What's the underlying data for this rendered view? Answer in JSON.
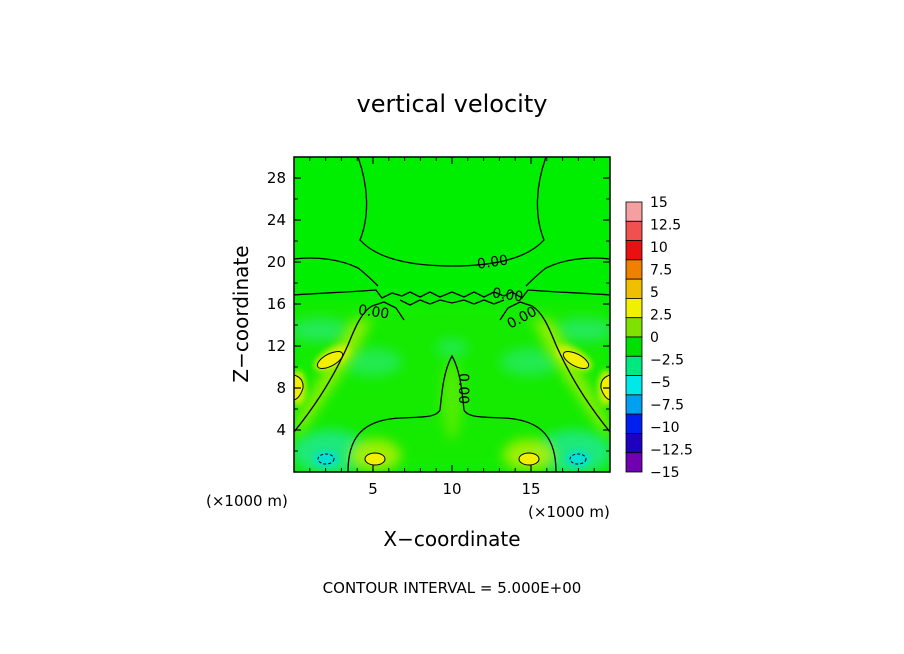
{
  "chart_data": {
    "type": "heatmap",
    "title": "vertical velocity",
    "xlabel": "X−coordinate",
    "ylabel": "Z−coordinate",
    "x_unit_left": "(×1000 m)",
    "x_unit_right": "(×1000 m)",
    "xlim": [
      0,
      20
    ],
    "ylim": [
      0,
      30
    ],
    "x_ticks": [
      "5",
      "10",
      "15"
    ],
    "y_ticks": [
      "4",
      "8",
      "12",
      "16",
      "20",
      "24",
      "28"
    ],
    "footer": "CONTOUR INTERVAL = 5.000E+00",
    "colorbar": {
      "labels": [
        "15",
        "12.5",
        "10",
        "7.5",
        "5",
        "2.5",
        "0",
        "−2.5",
        "−5",
        "−7.5",
        "−10",
        "−12.5",
        "−15"
      ],
      "colors": [
        "#f4a0a0",
        "#f05050",
        "#e81010",
        "#f08000",
        "#f0c000",
        "#f0f000",
        "#80e000",
        "#00e000",
        "#00e880",
        "#00e8e8",
        "#00a0f0",
        "#0020f0",
        "#2000c0",
        "#7000b0"
      ]
    },
    "contour_labels": [
      "0.00",
      "0.00",
      "0.00",
      "0.00",
      "0.00"
    ]
  }
}
